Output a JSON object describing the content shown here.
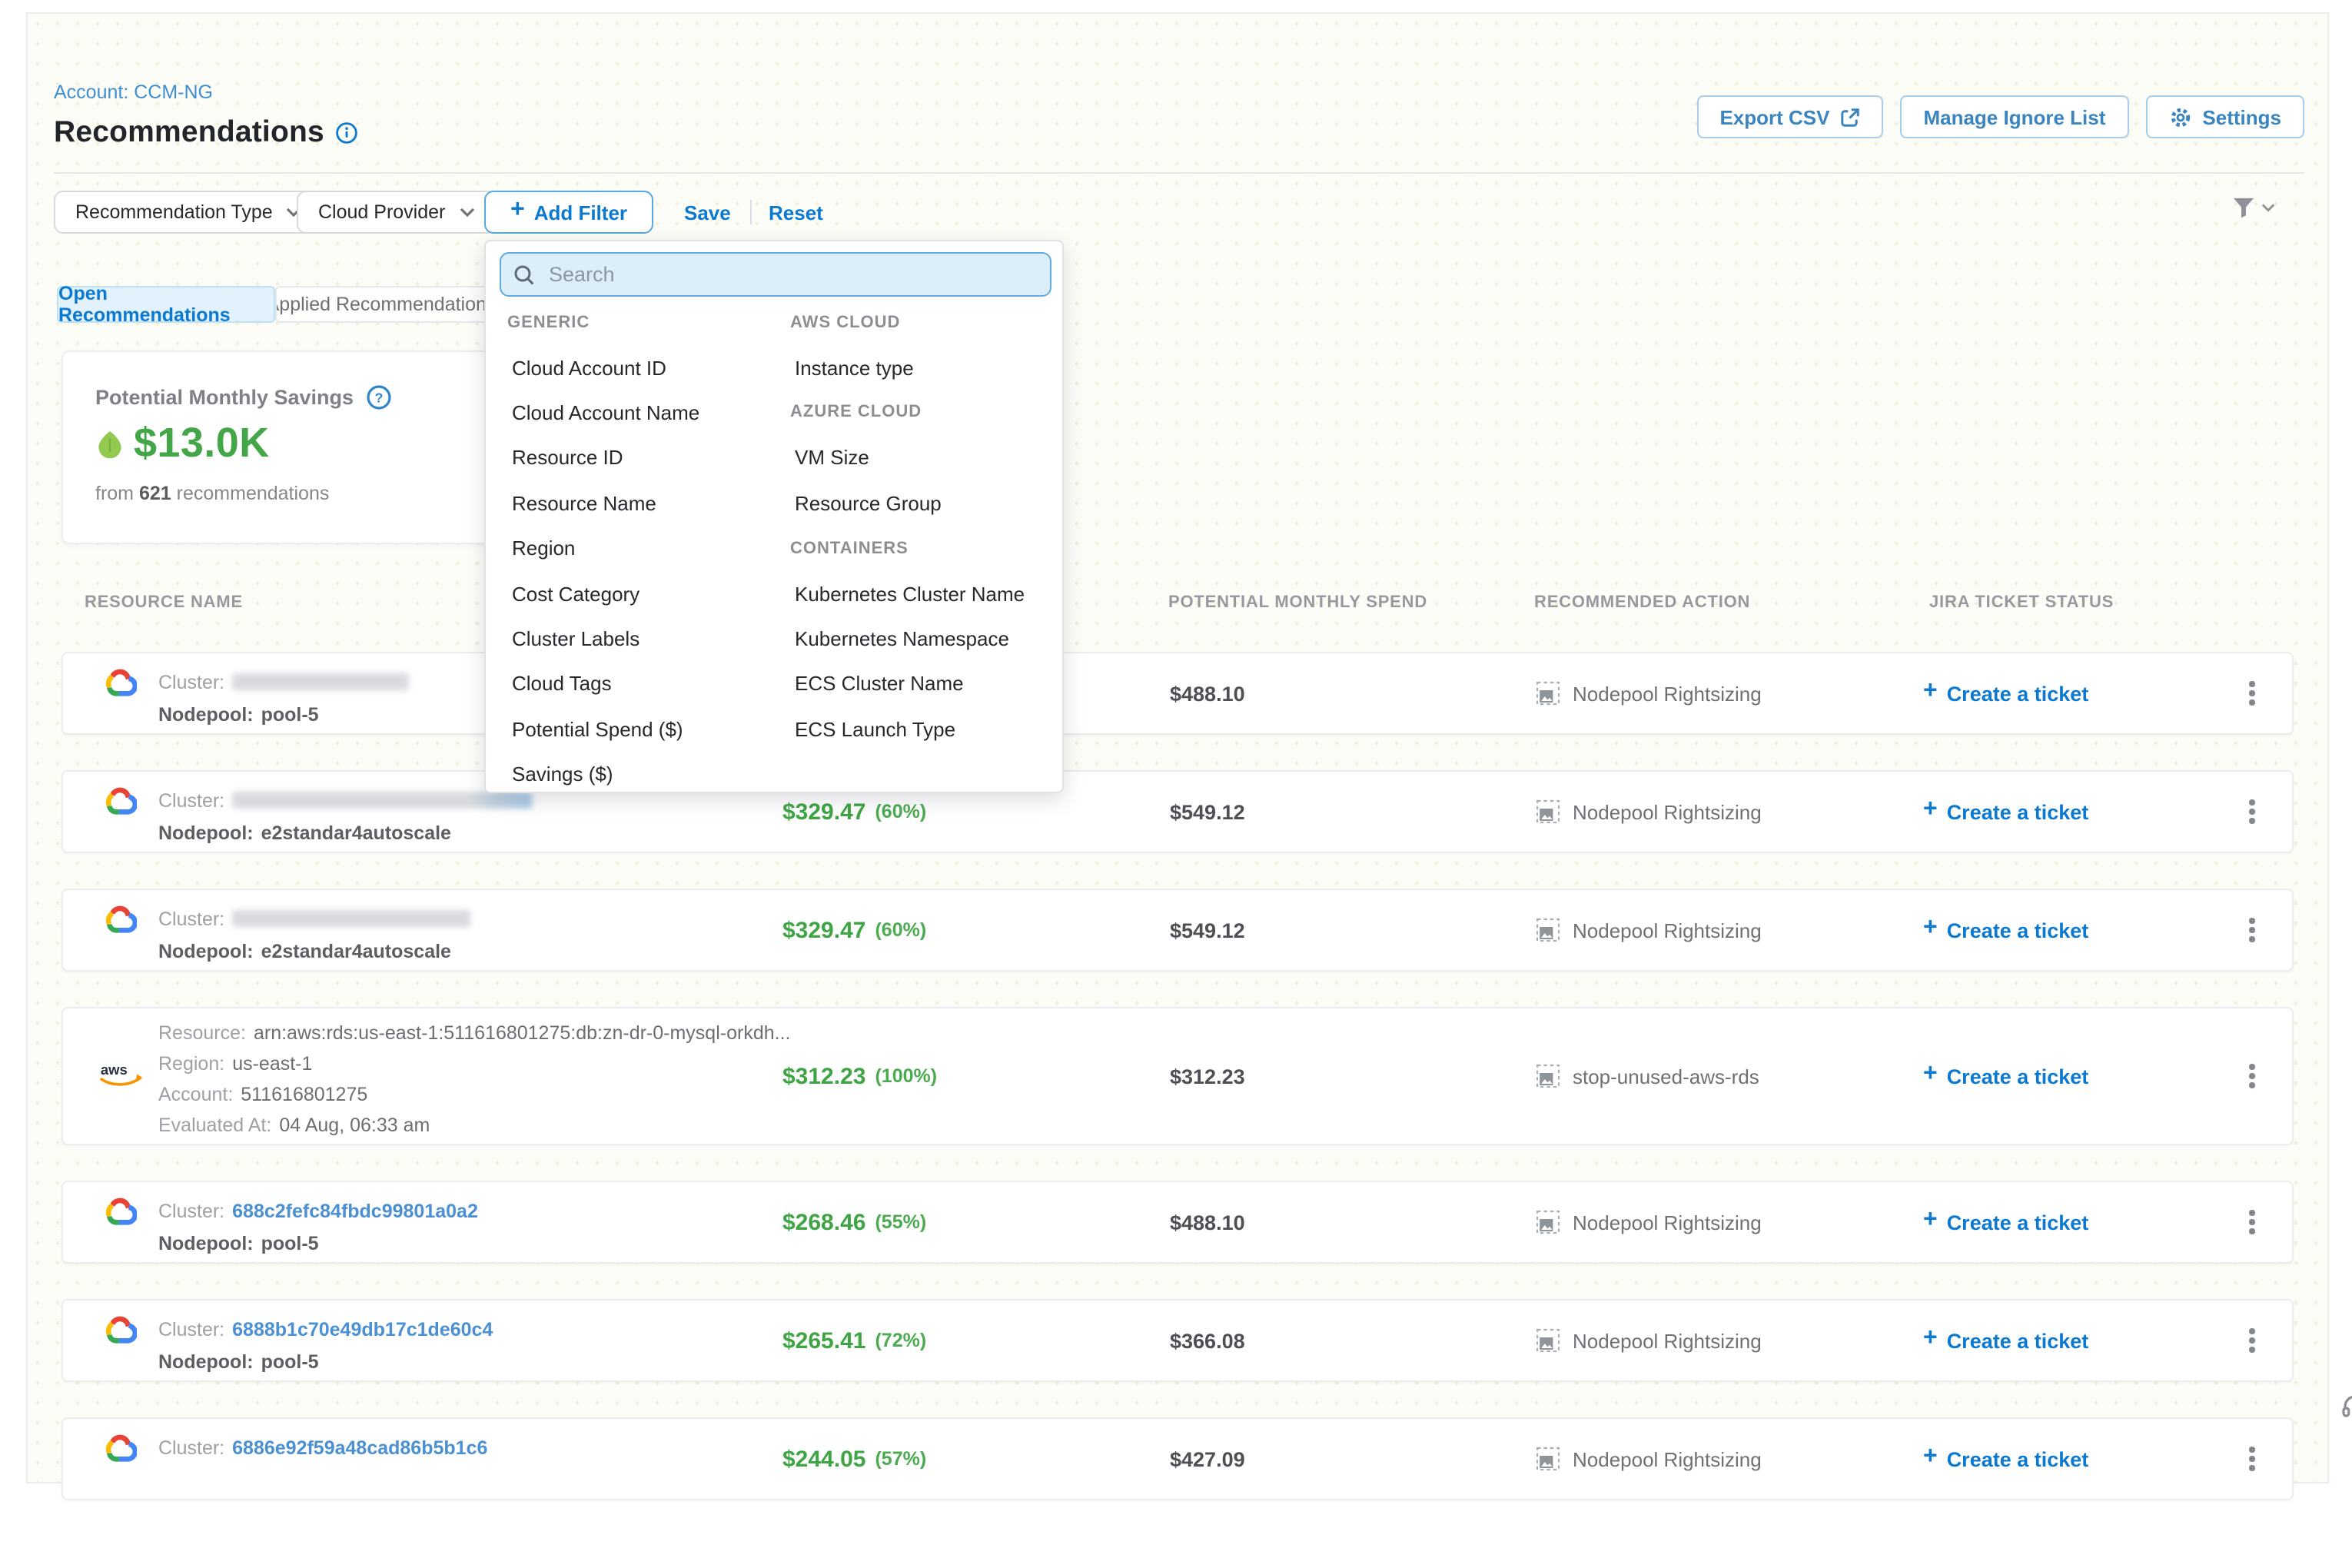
{
  "page": {
    "account_label": "Account: CCM-NG",
    "title": "Recommendations",
    "buttons": {
      "export_csv": "Export CSV",
      "manage_ignore_list": "Manage Ignore List",
      "settings": "Settings"
    }
  },
  "filter_bar": {
    "recommendation_type": "Recommendation Type",
    "cloud_provider": "Cloud Provider",
    "add_filter": "Add Filter",
    "save": "Save",
    "reset": "Reset"
  },
  "tabs": {
    "open": "Open Recommendations",
    "applied": "Applied Recommendations"
  },
  "savings_card": {
    "title": "Potential Monthly Savings",
    "amount": "$13.0K",
    "from_word": "from",
    "count": "621",
    "recommendations_word": "recommendations"
  },
  "filter_menu": {
    "search_placeholder": "Search",
    "columns": [
      {
        "entries": [
          {
            "kind": "header",
            "label": "GENERIC"
          },
          {
            "kind": "item",
            "label": "Cloud Account ID"
          },
          {
            "kind": "item",
            "label": "Cloud Account Name"
          },
          {
            "kind": "item",
            "label": "Resource ID"
          },
          {
            "kind": "item",
            "label": "Resource Name"
          },
          {
            "kind": "item",
            "label": "Region"
          },
          {
            "kind": "item",
            "label": "Cost Category"
          },
          {
            "kind": "item",
            "label": "Cluster Labels"
          },
          {
            "kind": "item",
            "label": "Cloud Tags"
          },
          {
            "kind": "item",
            "label": "Potential Spend ($)"
          },
          {
            "kind": "item",
            "label": "Savings ($)"
          }
        ]
      },
      {
        "entries": [
          {
            "kind": "header",
            "label": "AWS CLOUD"
          },
          {
            "kind": "item",
            "label": "Instance type"
          },
          {
            "kind": "header",
            "label": "AZURE CLOUD"
          },
          {
            "kind": "item",
            "label": "VM Size"
          },
          {
            "kind": "item",
            "label": "Resource Group"
          },
          {
            "kind": "header",
            "label": "CONTAINERS"
          },
          {
            "kind": "item",
            "label": "Kubernetes Cluster Name"
          },
          {
            "kind": "item",
            "label": "Kubernetes Namespace"
          },
          {
            "kind": "item",
            "label": "ECS Cluster Name"
          },
          {
            "kind": "item",
            "label": "ECS Launch Type"
          }
        ]
      }
    ]
  },
  "table": {
    "headers": {
      "resource": "RESOURCE NAME",
      "spend": "POTENTIAL MONTHLY SPEND",
      "action": "RECOMMENDED ACTION",
      "jira": "JIRA TICKET STATUS"
    },
    "row_labels": {
      "cluster": "Cluster:",
      "nodepool": "Nodepool:",
      "resource": "Resource:",
      "region": "Region:",
      "account": "Account:",
      "evaluated": "Evaluated At:"
    },
    "create_ticket": "Create a ticket",
    "rows": [
      {
        "provider": "gcp",
        "cluster_name": "",
        "cluster_redacted": true,
        "nodepool": "pool-5",
        "savings": "",
        "savings_pct": "",
        "spend": "$488.10",
        "action": "Nodepool Rightsizing"
      },
      {
        "provider": "gcp",
        "cluster_name": "",
        "cluster_redacted": true,
        "nodepool": "e2standar4autoscale",
        "savings": "$329.47",
        "savings_pct": "(60%)",
        "spend": "$549.12",
        "action": "Nodepool Rightsizing"
      },
      {
        "provider": "gcp",
        "cluster_name": "",
        "cluster_redacted": true,
        "nodepool": "e2standar4autoscale",
        "savings": "$329.47",
        "savings_pct": "(60%)",
        "spend": "$549.12",
        "action": "Nodepool Rightsizing"
      },
      {
        "provider": "aws",
        "resource": "arn:aws:rds:us-east-1:511616801275:db:zn-dr-0-mysql-orkdh...",
        "region": "us-east-1",
        "account": "511616801275",
        "evaluated": "04 Aug, 06:33 am",
        "savings": "$312.23",
        "savings_pct": "(100%)",
        "spend": "$312.23",
        "action": "stop-unused-aws-rds"
      },
      {
        "provider": "gcp",
        "cluster_name": "688c2fefc84fbdc99801a0a2",
        "cluster_redacted": false,
        "nodepool": "pool-5",
        "savings": "$268.46",
        "savings_pct": "(55%)",
        "spend": "$488.10",
        "action": "Nodepool Rightsizing"
      },
      {
        "provider": "gcp",
        "cluster_name": "6888b1c70e49db17c1de60c4",
        "cluster_redacted": false,
        "nodepool": "pool-5",
        "savings": "$265.41",
        "savings_pct": "(72%)",
        "spend": "$366.08",
        "action": "Nodepool Rightsizing"
      },
      {
        "provider": "gcp",
        "cluster_name": "6886e92f59a48cad86b5b1c6",
        "cluster_redacted": false,
        "nodepool": "",
        "savings": "$244.05",
        "savings_pct": "(57%)",
        "spend": "$427.09",
        "action": "Nodepool Rightsizing"
      }
    ]
  },
  "colors": {
    "accent_blue": "#0b79d0",
    "savings_green": "#3fa544",
    "link_blue": "#4a90d2"
  }
}
